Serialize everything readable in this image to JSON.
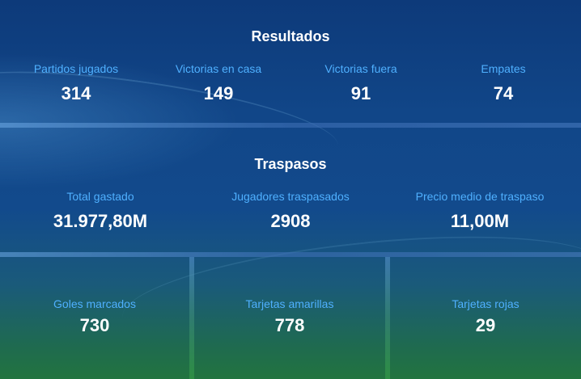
{
  "resultados": {
    "title": "Resultados",
    "stats": [
      {
        "label": "Partidos jugados",
        "value": "314"
      },
      {
        "label": "Victorias en casa",
        "value": "149"
      },
      {
        "label": "Victorias fuera",
        "value": "91"
      },
      {
        "label": "Empates",
        "value": "74"
      }
    ]
  },
  "traspasos": {
    "title": "Traspasos",
    "stats": [
      {
        "label": "Total gastado",
        "value": "31.977,80M"
      },
      {
        "label": "Jugadores traspasados",
        "value": "2908"
      },
      {
        "label": "Precio medio de traspaso",
        "value": "11,00M"
      }
    ]
  },
  "disciplina": {
    "stats": [
      {
        "label": "Goles marcados",
        "value": "730"
      },
      {
        "label": "Tarjetas amarillas",
        "value": "778"
      },
      {
        "label": "Tarjetas rojas",
        "value": "29"
      }
    ]
  },
  "colors": {
    "label": "#4fb0ff",
    "value": "#ffffff",
    "background_top": "#0d3a7a",
    "background_bottom": "#22743f"
  }
}
